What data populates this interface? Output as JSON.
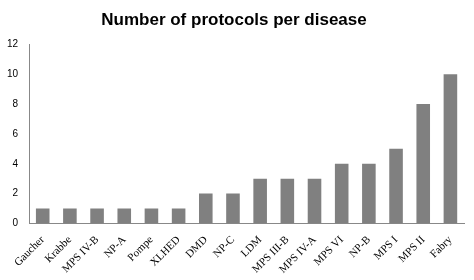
{
  "chart_data": {
    "type": "bar",
    "title": "Number of protocols per disease",
    "categories": [
      "Gaucher",
      "Krabbe",
      "MPS IV-B",
      "NP-A",
      "Pompe",
      "XLHED",
      "DMD",
      "NP-C",
      "LDM",
      "MPS III-B",
      "MPS IV-A",
      "MPS VI",
      "NP-B",
      "MPS I",
      "MPS II",
      "Fabry"
    ],
    "values": [
      1,
      1,
      1,
      1,
      1,
      1,
      2,
      2,
      3,
      3,
      3,
      4,
      4,
      5,
      8,
      10
    ],
    "color": "#808080",
    "ylim": [
      0,
      12
    ],
    "yticks": [
      0,
      2,
      4,
      6,
      8,
      10,
      12
    ],
    "grid": false
  }
}
